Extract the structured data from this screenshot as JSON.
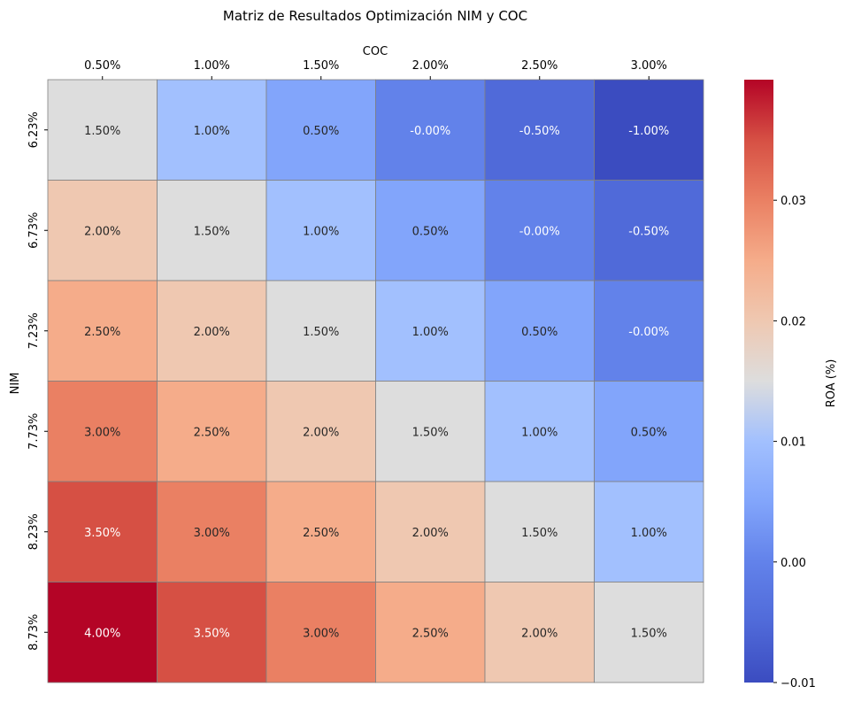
{
  "chart_data": {
    "type": "heatmap",
    "title": "Matriz de Resultados Optimización NIM y COC",
    "xlabel": "COC",
    "ylabel": "NIM",
    "x_categories": [
      "0.50%",
      "1.00%",
      "1.50%",
      "2.00%",
      "2.50%",
      "3.00%"
    ],
    "y_categories": [
      "6.23%",
      "6.73%",
      "7.23%",
      "7.73%",
      "8.23%",
      "8.73%"
    ],
    "values": [
      [
        0.015,
        0.01,
        0.005,
        0.0,
        -0.005,
        -0.01
      ],
      [
        0.02,
        0.015,
        0.01,
        0.005,
        0.0,
        -0.005
      ],
      [
        0.025,
        0.02,
        0.015,
        0.01,
        0.005,
        0.0
      ],
      [
        0.03,
        0.025,
        0.02,
        0.015,
        0.01,
        0.005
      ],
      [
        0.035,
        0.03,
        0.025,
        0.02,
        0.015,
        0.01
      ],
      [
        0.04,
        0.035,
        0.03,
        0.025,
        0.02,
        0.015
      ]
    ],
    "annotations": [
      [
        "1.50%",
        "1.00%",
        "0.50%",
        "-0.00%",
        "-0.50%",
        "-1.00%"
      ],
      [
        "2.00%",
        "1.50%",
        "1.00%",
        "0.50%",
        "-0.00%",
        "-0.50%"
      ],
      [
        "2.50%",
        "2.00%",
        "1.50%",
        "1.00%",
        "0.50%",
        "-0.00%"
      ],
      [
        "3.00%",
        "2.50%",
        "2.00%",
        "1.50%",
        "1.00%",
        "0.50%"
      ],
      [
        "3.50%",
        "3.00%",
        "2.50%",
        "2.00%",
        "1.50%",
        "1.00%"
      ],
      [
        "4.00%",
        "3.50%",
        "3.00%",
        "2.50%",
        "2.00%",
        "1.50%"
      ]
    ],
    "colormap": "coolwarm",
    "colorbar": {
      "label": "ROA (%)",
      "vmin": -0.01,
      "vmax": 0.04,
      "ticks": [
        -0.01,
        0.0,
        0.01,
        0.02,
        0.03
      ],
      "tick_labels": [
        "−0.01",
        "0.00",
        "0.01",
        "0.02",
        "0.03"
      ]
    },
    "x_axis_position": "top",
    "grid": false
  }
}
